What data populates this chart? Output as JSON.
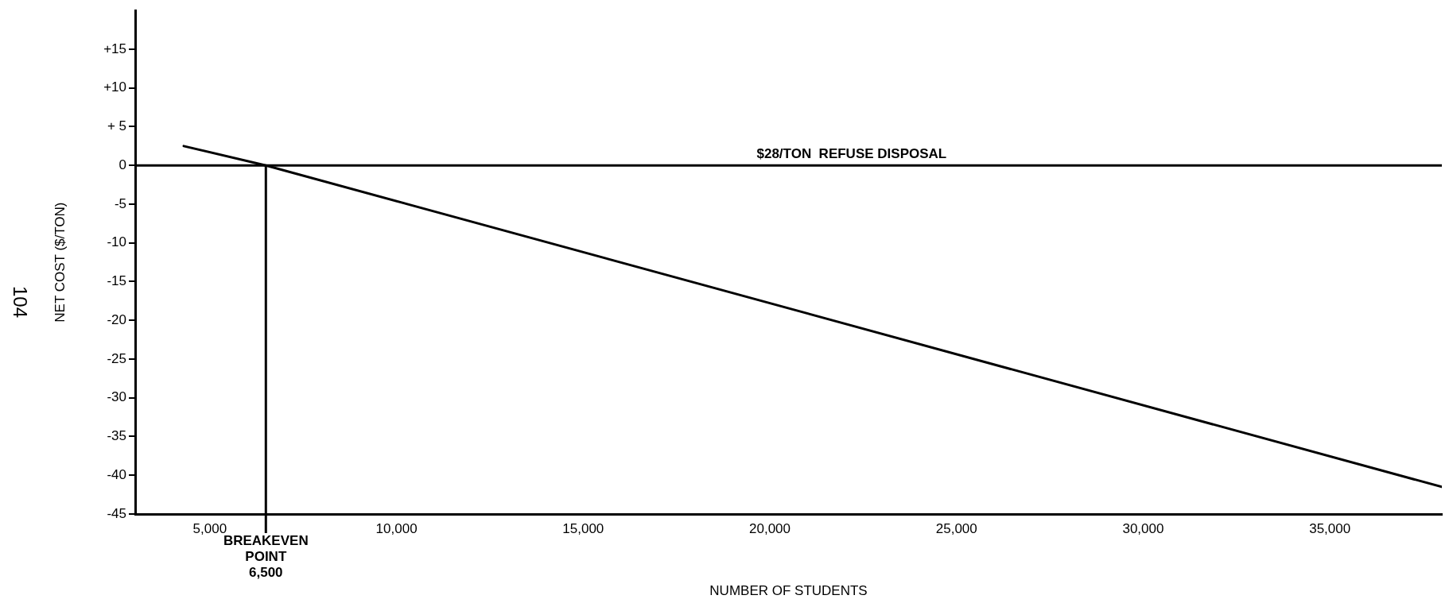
{
  "chart_data": {
    "type": "line",
    "xlabel": "NUMBER OF STUDENTS",
    "ylabel": "NET COST ($/TON)",
    "series": [
      {
        "color": "#000000",
        "x": [
          4300,
          6500,
          38000
        ],
        "values": [
          2.5,
          0,
          -41.5
        ]
      }
    ],
    "xlim": [
      3000,
      38000
    ],
    "ylim": [
      -45,
      20
    ],
    "xticks": [
      {
        "value": 5000,
        "label": "5,000"
      },
      {
        "value": 10000,
        "label": "10,000"
      },
      {
        "value": 15000,
        "label": "15,000"
      },
      {
        "value": 20000,
        "label": "20,000"
      },
      {
        "value": 25000,
        "label": "25,000"
      },
      {
        "value": 30000,
        "label": "30,000"
      },
      {
        "value": 35000,
        "label": "35,000"
      }
    ],
    "yticks": [
      {
        "value": 15,
        "label": "+15"
      },
      {
        "value": 10,
        "label": "+10"
      },
      {
        "value": 5,
        "label": "+ 5"
      },
      0,
      -5,
      -10,
      -15,
      -20,
      -25,
      -30,
      -35,
      -40,
      -45
    ],
    "ref_lines": [
      {
        "axis": "y",
        "value": 0,
        "label": "$28/TON  REFUSE DISPOSAL",
        "color": "#000000"
      },
      {
        "axis": "x",
        "value": 6500,
        "label": "BREAKEVEN\nPOINT\n6,500",
        "color": "#000000"
      }
    ],
    "annotations": [
      "104"
    ],
    "grid": false,
    "legend": false,
    "marker": "none",
    "line_style": "solid"
  }
}
